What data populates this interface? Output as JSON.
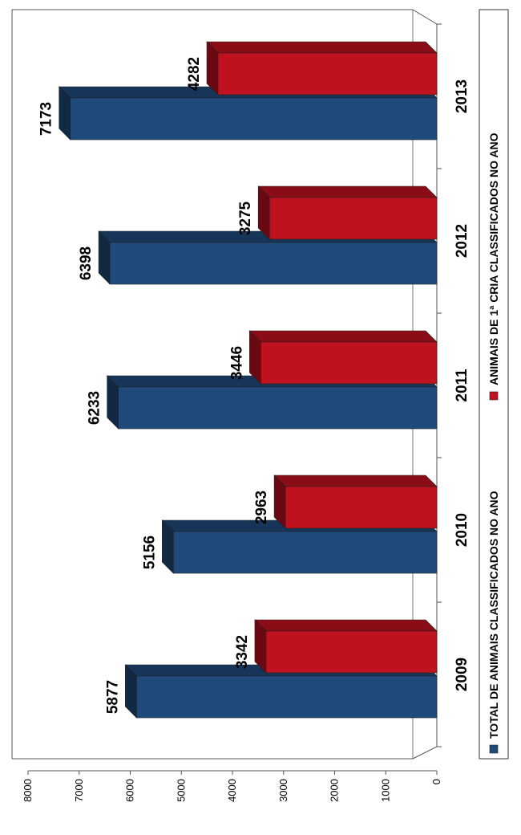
{
  "chart_data": {
    "type": "bar",
    "orientation": "rotated 90 degrees (3D clustered column)",
    "categories": [
      "2009",
      "2010",
      "2011",
      "2012",
      "2013"
    ],
    "series": [
      {
        "name": "TOTAL DE ANIMAIS CLASSIFICADOS NO ANO",
        "color": "#1f4a7a",
        "values": [
          5877,
          5156,
          6233,
          6398,
          7173
        ]
      },
      {
        "name": "ANIMAIS DE 1ª CRIA CLASSIFICADOS NO ANO",
        "color": "#c0111f",
        "values": [
          3342,
          2963,
          3446,
          3275,
          4282
        ]
      }
    ],
    "yticks": [
      0,
      1000,
      2000,
      3000,
      4000,
      5000,
      6000,
      7000,
      8000
    ],
    "ylim": [
      0,
      8000
    ],
    "legend_position": "right",
    "grid": false,
    "title": "",
    "xlabel": "",
    "ylabel": ""
  }
}
